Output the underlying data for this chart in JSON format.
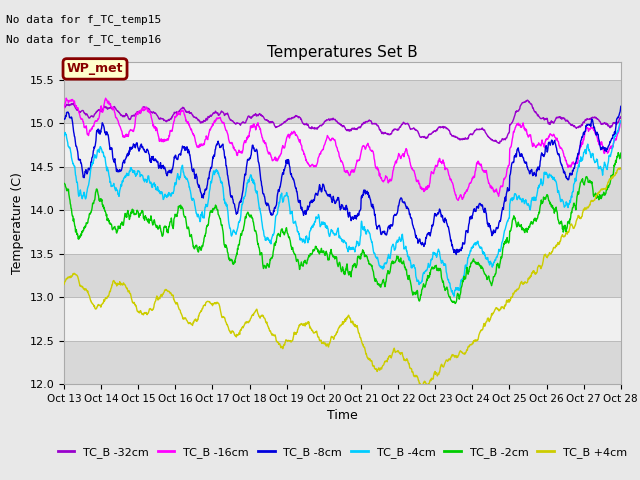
{
  "title": "Temperatures Set B",
  "xlabel": "Time",
  "ylabel": "Temperature (C)",
  "ylim": [
    12.0,
    15.7
  ],
  "yticks": [
    12.0,
    12.5,
    13.0,
    13.5,
    14.0,
    14.5,
    15.0,
    15.5
  ],
  "xtick_labels": [
    "Oct 13",
    "Oct 14",
    "Oct 15",
    "Oct 16",
    "Oct 17",
    "Oct 18",
    "Oct 19",
    "Oct 20",
    "Oct 21",
    "Oct 22",
    "Oct 23",
    "Oct 24",
    "Oct 25",
    "Oct 26",
    "Oct 27",
    "Oct 28"
  ],
  "series_colors": [
    "#9900cc",
    "#ff00ff",
    "#0000dd",
    "#00ccff",
    "#00cc00",
    "#cccc00"
  ],
  "series_labels": [
    "TC_B -32cm",
    "TC_B -16cm",
    "TC_B -8cm",
    "TC_B -4cm",
    "TC_B -2cm",
    "TC_B +4cm"
  ],
  "annotations": [
    "No data for f_TC_temp15",
    "No data for f_TC_temp16"
  ],
  "wp_met_label": "WP_met",
  "background_color": "#e8e8e8",
  "band_colors": [
    "#d8d8d8",
    "#f0f0f0"
  ],
  "n_points": 1500
}
